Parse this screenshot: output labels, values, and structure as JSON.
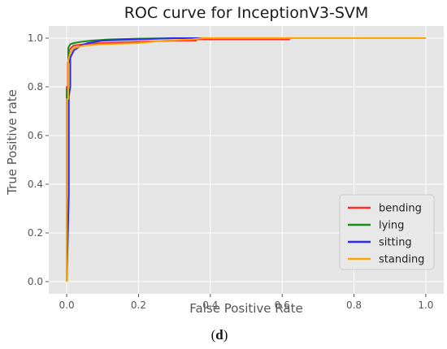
{
  "chart_data": {
    "type": "line",
    "title": "ROC curve for InceptionV3-SVM",
    "xlabel": "False Positive Rate",
    "ylabel": "True Positive rate",
    "xlim": [
      -0.05,
      1.05
    ],
    "ylim": [
      -0.05,
      1.05
    ],
    "xticks": [
      "0.0",
      "0.2",
      "0.4",
      "0.6",
      "0.8",
      "1.0"
    ],
    "yticks": [
      "0.0",
      "0.2",
      "0.4",
      "0.6",
      "0.8",
      "1.0"
    ],
    "grid": true,
    "legend_position": "lower-right",
    "series": [
      {
        "name": "bending",
        "color": "#ff2a2a",
        "x": [
          0.0,
          0.0,
          0.003,
          0.003,
          0.007,
          0.007,
          0.012,
          0.02,
          0.05,
          0.1,
          0.2,
          0.3,
          0.36,
          0.36,
          0.62,
          0.62,
          1.0
        ],
        "y": [
          0.0,
          0.8,
          0.8,
          0.9,
          0.9,
          0.95,
          0.96,
          0.97,
          0.975,
          0.98,
          0.985,
          0.99,
          0.99,
          0.995,
          0.995,
          1.0,
          1.0
        ]
      },
      {
        "name": "lying",
        "color": "#1a8c1a",
        "x": [
          0.0,
          0.0,
          0.004,
          0.004,
          0.01,
          0.02,
          0.04,
          0.07,
          0.12,
          0.2,
          0.3,
          0.38,
          1.0
        ],
        "y": [
          0.0,
          0.79,
          0.79,
          0.96,
          0.975,
          0.98,
          0.985,
          0.99,
          0.995,
          0.998,
          1.0,
          1.0,
          1.0
        ]
      },
      {
        "name": "sitting",
        "color": "#2a2aff",
        "x": [
          0.0,
          0.006,
          0.006,
          0.01,
          0.01,
          0.02,
          0.04,
          0.06,
          0.1,
          0.2,
          0.3,
          0.38,
          1.0
        ],
        "y": [
          0.0,
          0.36,
          0.76,
          0.8,
          0.92,
          0.95,
          0.97,
          0.98,
          0.99,
          0.995,
          1.0,
          1.0,
          1.0
        ]
      },
      {
        "name": "standing",
        "color": "#ffa500",
        "x": [
          0.0,
          0.0,
          0.004,
          0.004,
          0.01,
          0.02,
          0.05,
          0.1,
          0.2,
          0.27,
          0.35,
          0.38,
          1.0
        ],
        "y": [
          0.0,
          0.75,
          0.75,
          0.91,
          0.94,
          0.96,
          0.97,
          0.975,
          0.98,
          0.99,
          0.995,
          1.0,
          1.0
        ]
      }
    ]
  },
  "caption": {
    "open": "(",
    "letter": "d",
    "close": ")"
  }
}
